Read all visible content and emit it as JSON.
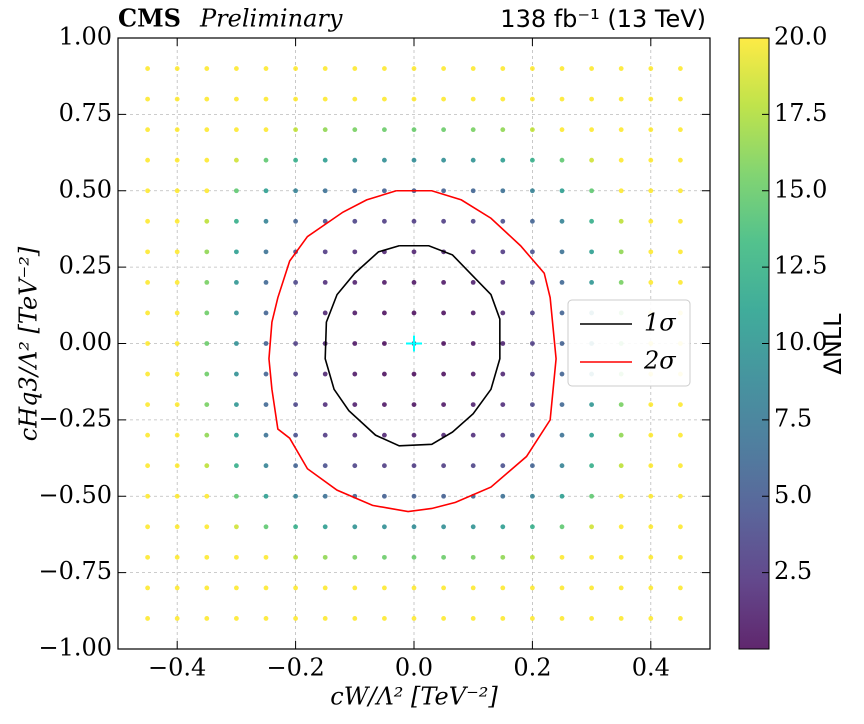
{
  "chart_data": {
    "type": "scatter",
    "title": "CMS",
    "subtitle": "Preliminary",
    "lumi_label": "138 fb⁻¹ (13 TeV)",
    "x_label": "cW/Λ² [TeV⁻²]",
    "y_label": "cHq3/Λ² [TeV⁻²]",
    "xlim": [
      -0.5,
      0.5
    ],
    "ylim": [
      -1,
      1
    ],
    "xticks": [
      {
        "value": -0.4,
        "label": "−0.4"
      },
      {
        "value": -0.2,
        "label": "−0.2"
      },
      {
        "value": 0,
        "label": "0.0"
      },
      0.2,
      0.4
    ],
    "yticks": [
      {
        "value": -1,
        "label": "−1.00"
      },
      {
        "value": -0.75,
        "label": "−0.75"
      },
      {
        "value": -0.5,
        "label": "−0.50"
      },
      {
        "value": -0.25,
        "label": "−0.25"
      },
      {
        "value": 0,
        "label": "0.00"
      },
      0.25,
      {
        "value": 0.5,
        "label": "0.50"
      },
      0.75,
      {
        "value": 1,
        "label": "1.00"
      }
    ],
    "grid": true,
    "x": [
      -0.45,
      -0.4,
      -0.35,
      -0.3,
      -0.25,
      -0.2,
      -0.15,
      -0.1,
      -0.05,
      0,
      0.05,
      0.1,
      0.15,
      0.2,
      0.25,
      0.3,
      0.35,
      0.4,
      0.45
    ],
    "y": [
      -0.9,
      -0.8,
      -0.7,
      -0.6,
      -0.5,
      -0.4,
      -0.3,
      -0.2,
      -0.1,
      0,
      0.1,
      0.2,
      0.3,
      0.4,
      0.5,
      0.6,
      0.7,
      0.8,
      0.9
    ],
    "z": [
      [
        20,
        20,
        20,
        20,
        20,
        20,
        20,
        20,
        20,
        20,
        20,
        20,
        20,
        20,
        20,
        20,
        20,
        20,
        20
      ],
      [
        20,
        20,
        20,
        20,
        20,
        20,
        20,
        20,
        20,
        20,
        20,
        20,
        20,
        20,
        20,
        20,
        20,
        20,
        20
      ],
      [
        20,
        20,
        20,
        20,
        20,
        18.0,
        16.4,
        15.6,
        15.1,
        15.0,
        15.1,
        15.6,
        16.4,
        18.0,
        20,
        20,
        20,
        20,
        20
      ],
      [
        20,
        20,
        20,
        18.5,
        14.6,
        12.1,
        10.6,
        9.7,
        9.3,
        9.1,
        9.3,
        9.7,
        10.6,
        12.1,
        14.6,
        18.5,
        20,
        20,
        20
      ],
      [
        20,
        20,
        20,
        14.6,
        10.7,
        8.2,
        6.7,
        5.8,
        5.4,
        5.3,
        5.4,
        5.8,
        6.7,
        8.2,
        10.7,
        14.6,
        20,
        20,
        20
      ],
      [
        20,
        20,
        17.9,
        12.1,
        8.3,
        5.7,
        4.2,
        3.3,
        2.9,
        2.8,
        2.9,
        3.3,
        4.2,
        5.7,
        8.3,
        12.1,
        17.9,
        20,
        20
      ],
      [
        20,
        20,
        16.4,
        10.7,
        6.8,
        4.3,
        2.7,
        1.9,
        1.4,
        1.3,
        1.4,
        1.9,
        2.7,
        4.3,
        6.8,
        10.7,
        16.4,
        20,
        20
      ],
      [
        20,
        20,
        15.6,
        9.9,
        6.0,
        3.5,
        1.9,
        1.1,
        0.6,
        0.5,
        0.6,
        1.1,
        1.9,
        3.5,
        6.0,
        9.9,
        15.6,
        20,
        20
      ],
      [
        20,
        20,
        15.2,
        9.5,
        5.6,
        3.1,
        1.5,
        0.7,
        0.2,
        0.1,
        0.2,
        0.7,
        1.5,
        3.1,
        5.6,
        9.5,
        15.2,
        20,
        20
      ],
      [
        20,
        20,
        15.1,
        9.4,
        5.5,
        3.0,
        1.4,
        0.6,
        0.1,
        0,
        0.1,
        0.6,
        1.4,
        3.0,
        5.5,
        9.4,
        15.1,
        20,
        20
      ],
      [
        20,
        20,
        15.2,
        9.5,
        5.6,
        3.1,
        1.5,
        0.7,
        0.2,
        0.1,
        0.2,
        0.7,
        1.5,
        3.1,
        5.6,
        9.5,
        15.2,
        20,
        20
      ],
      [
        20,
        20,
        15.6,
        9.9,
        6.0,
        3.5,
        1.9,
        1.1,
        0.6,
        0.5,
        0.6,
        1.1,
        1.9,
        3.5,
        6.0,
        9.9,
        15.6,
        20,
        20
      ],
      [
        20,
        20,
        16.4,
        10.7,
        6.8,
        4.3,
        2.7,
        1.9,
        1.4,
        1.3,
        1.4,
        1.9,
        2.7,
        4.3,
        6.8,
        10.7,
        16.4,
        20,
        20
      ],
      [
        20,
        20,
        17.9,
        12.1,
        8.3,
        5.7,
        4.2,
        3.3,
        2.9,
        2.8,
        2.9,
        3.3,
        4.2,
        5.7,
        8.3,
        12.1,
        17.9,
        20,
        20
      ],
      [
        20,
        20,
        20,
        14.6,
        10.7,
        8.2,
        6.7,
        5.8,
        5.4,
        5.3,
        5.4,
        5.8,
        6.7,
        8.2,
        10.7,
        14.6,
        20,
        20,
        20
      ],
      [
        20,
        20,
        20,
        18.5,
        14.6,
        12.1,
        10.6,
        9.7,
        9.3,
        9.1,
        9.3,
        9.7,
        10.6,
        12.1,
        14.6,
        18.5,
        20,
        20,
        20
      ],
      [
        20,
        20,
        20,
        20,
        20,
        18.0,
        16.4,
        15.6,
        15.1,
        15.0,
        15.1,
        15.6,
        16.4,
        18.0,
        20,
        20,
        20,
        20,
        20
      ],
      [
        20,
        20,
        20,
        20,
        20,
        20,
        20,
        20,
        20,
        20,
        20,
        20,
        20,
        20,
        20,
        20,
        20,
        20,
        20
      ],
      [
        20,
        20,
        20,
        20,
        20,
        20,
        20,
        20,
        20,
        20,
        20,
        20,
        20,
        20,
        20,
        20,
        20,
        20,
        20
      ]
    ],
    "colorbar": {
      "label": "ΔNLL",
      "clim": [
        0,
        20
      ],
      "ticks": [
        2.5,
        {
          "value": 5,
          "label": "5.0"
        },
        7.5,
        {
          "value": 10,
          "label": "10.0"
        },
        12.5,
        {
          "value": 15,
          "label": "15.0"
        },
        17.5,
        {
          "value": 20,
          "label": "20.0"
        }
      ]
    },
    "series": [
      {
        "name": "1σ",
        "color": "#000000",
        "x": [
          -0.025,
          0.025,
          0.065,
          0.1,
          0.13,
          0.145,
          0.145,
          0.13,
          0.1,
          0.065,
          0.03,
          -0.025,
          -0.065,
          -0.11,
          -0.135,
          -0.15,
          -0.148,
          -0.13,
          -0.1,
          -0.06,
          -0.025
        ],
        "y": [
          0.32,
          0.32,
          0.29,
          0.22,
          0.16,
          0.08,
          -0.05,
          -0.15,
          -0.23,
          -0.29,
          -0.33,
          -0.335,
          -0.3,
          -0.22,
          -0.15,
          -0.05,
          0.07,
          0.16,
          0.23,
          0.3,
          0.32
        ]
      },
      {
        "name": "2σ",
        "color": "#ff0000",
        "x": [
          -0.03,
          0.03,
          0.08,
          0.13,
          0.18,
          0.22,
          0.23,
          0.235,
          0.24,
          0.23,
          0.19,
          0.13,
          0.07,
          0.03,
          -0.01,
          -0.07,
          -0.13,
          -0.18,
          -0.21,
          -0.23,
          -0.24,
          -0.245,
          -0.24,
          -0.23,
          -0.21,
          -0.18,
          -0.12,
          -0.08,
          -0.03
        ],
        "y": [
          0.5,
          0.5,
          0.47,
          0.41,
          0.32,
          0.23,
          0.15,
          0.05,
          -0.05,
          -0.25,
          -0.37,
          -0.47,
          -0.52,
          -0.54,
          -0.55,
          -0.53,
          -0.48,
          -0.41,
          -0.31,
          -0.28,
          -0.15,
          -0.05,
          0.07,
          0.15,
          0.27,
          0.35,
          0.43,
          0.47,
          0.5
        ]
      }
    ],
    "best_fit": {
      "x": 0,
      "y": 0,
      "color": "#00ffff"
    },
    "legend": "right"
  }
}
